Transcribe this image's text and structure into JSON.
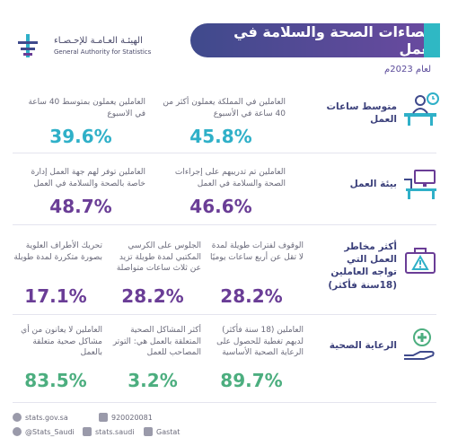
{
  "header": {
    "title": "إحصاءات الصحة والسلامة في العمل",
    "year": "لعام 2023م",
    "logo_ar": "الهيئـة العـامـة للإحـصـاء",
    "logo_en": "General Authority for Statistics"
  },
  "rows": {
    "hours": {
      "label": "متوسط ساعات العمل",
      "icon": "worker-clock-icon",
      "stats": [
        {
          "text": "العاملين في المملكة يعملون أكثر من 40 ساعة في الأسبوع",
          "value": "45.8%"
        },
        {
          "text": "العاملين يعملون بمتوسط 40 ساعة في الاسبوع",
          "value": "39.6%"
        }
      ]
    },
    "environment": {
      "label": "بيئة العمل",
      "icon": "office-desk-icon",
      "stats": [
        {
          "text": "العاملين تم تدريبهم على إجراءات الصحة والسلامة في العمل",
          "value": "46.6%"
        },
        {
          "text": "العاملين توفر لهم جهة العمل إدارة خاصة بالصحة والسلامة في العمل",
          "value": "48.7%"
        }
      ]
    },
    "risks": {
      "label": "أكثر مخاطر العمل التي تواجه العاملين (18سنة فأكثر)",
      "icon": "warning-briefcase-icon",
      "stats": [
        {
          "text": "الوقوف لفترات طويلة لمدة لا تقل عن أربع ساعات يوميًا",
          "value": "28.2%"
        },
        {
          "text": "الجلوس على الكرسي المكتبي لمدة طويلة تزيد عن ثلاث ساعات متواصلة",
          "value": "28.2%"
        },
        {
          "text": "تحريك الأطراف العلوية بصورة متكررة لمدة طويلة",
          "value": "17.1%"
        }
      ]
    },
    "health": {
      "label": "الرعاية الصحية",
      "icon": "health-hand-icon",
      "stats": [
        {
          "text": "العاملين (18 سنة فأكثر) لديهم تغطية للحصول على الرعاية الصحية الأساسية",
          "value": "89.7%"
        },
        {
          "text": "أكثر المشاكل الصحية المتعلقة بالعمل هي: التوتر المصاحب للعمل",
          "value": "3.2%"
        },
        {
          "text": "العاملين لا يعانون من أي مشاكل صحية متعلقة بالعمل",
          "value": "83.5%"
        }
      ]
    }
  },
  "footer": {
    "website": "stats.gov.sa",
    "phone": "920020081",
    "twitter": "@Stats_Saudi",
    "facebook": "stats.saudi",
    "instagram": "Gastat"
  },
  "colors": {
    "blue": "#2fb0c8",
    "purple": "#6a3d96",
    "green": "#4cae7f",
    "navy": "#3f4a8c"
  }
}
